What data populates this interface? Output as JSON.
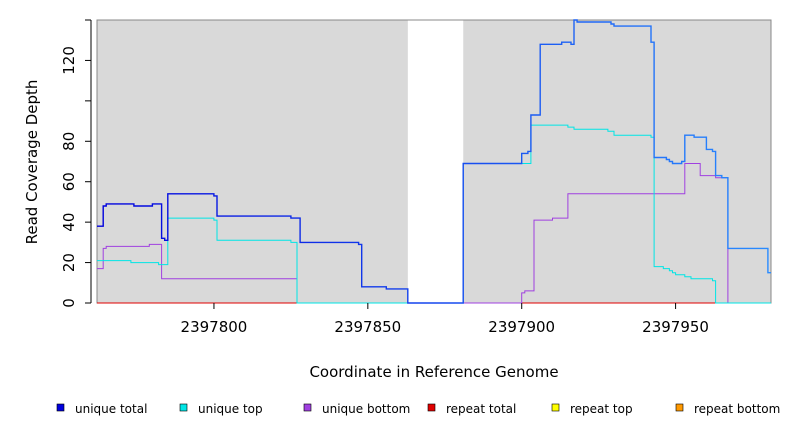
{
  "chart_data": {
    "type": "line",
    "title": "",
    "xlabel": "Coordinate in Reference Genome",
    "ylabel": "Read Coverage Depth",
    "xlim": [
      2397762,
      2397981
    ],
    "ylim": [
      0,
      140
    ],
    "x_ticks": [
      2397800,
      2397850,
      2397900,
      2397950
    ],
    "x_tick_labels": [
      "2397800",
      "2397850",
      "2397900",
      "2397950"
    ],
    "y_ticks": [
      0,
      20,
      40,
      60,
      80,
      100,
      120,
      140
    ],
    "y_tick_labels": [
      "0",
      "20",
      "40",
      "60",
      "80",
      "",
      "120",
      ""
    ],
    "shaded_regions": [
      [
        2397762,
        2397863
      ],
      [
        2397881,
        2397981
      ]
    ],
    "shade_color": "#d9d9d9",
    "legend_position": "bottom",
    "series": [
      {
        "name": "unique total",
        "color": "#0000dd",
        "gradient_to": "#2a8cff",
        "points": [
          [
            2397762,
            38
          ],
          [
            2397764,
            48
          ],
          [
            2397765,
            49
          ],
          [
            2397774,
            48
          ],
          [
            2397780,
            49
          ],
          [
            2397783,
            32
          ],
          [
            2397784,
            31
          ],
          [
            2397785,
            54
          ],
          [
            2397800,
            53
          ],
          [
            2397801,
            43
          ],
          [
            2397825,
            42
          ],
          [
            2397828,
            30
          ],
          [
            2397847,
            29
          ],
          [
            2397848,
            8
          ],
          [
            2397856,
            7
          ],
          [
            2397863,
            0
          ],
          [
            2397881,
            69
          ],
          [
            2397900,
            74
          ],
          [
            2397902,
            75
          ],
          [
            2397903,
            93
          ],
          [
            2397906,
            128
          ],
          [
            2397913,
            129
          ],
          [
            2397916,
            128
          ],
          [
            2397917,
            140
          ],
          [
            2397918,
            139
          ],
          [
            2397929,
            138
          ],
          [
            2397930,
            137
          ],
          [
            2397942,
            129
          ],
          [
            2397943,
            72
          ],
          [
            2397947,
            71
          ],
          [
            2397948,
            70
          ],
          [
            2397949,
            69
          ],
          [
            2397952,
            70
          ],
          [
            2397953,
            83
          ],
          [
            2397956,
            82
          ],
          [
            2397960,
            76
          ],
          [
            2397962,
            75
          ],
          [
            2397963,
            63
          ],
          [
            2397965,
            62
          ],
          [
            2397966,
            62
          ],
          [
            2397967,
            27
          ],
          [
            2397979,
            27
          ],
          [
            2397980,
            15
          ],
          [
            2397981,
            15
          ]
        ]
      },
      {
        "name": "unique top",
        "color": "#00e5e5",
        "points": [
          [
            2397762,
            21
          ],
          [
            2397773,
            20
          ],
          [
            2397782,
            19
          ],
          [
            2397785,
            42
          ],
          [
            2397800,
            41
          ],
          [
            2397801,
            31
          ],
          [
            2397825,
            30
          ],
          [
            2397827,
            0
          ],
          [
            2397881,
            69
          ],
          [
            2397900,
            69
          ],
          [
            2397903,
            88
          ],
          [
            2397915,
            87
          ],
          [
            2397917,
            86
          ],
          [
            2397928,
            85
          ],
          [
            2397930,
            83
          ],
          [
            2397942,
            82
          ],
          [
            2397943,
            18
          ],
          [
            2397946,
            17
          ],
          [
            2397948,
            16
          ],
          [
            2397949,
            15
          ],
          [
            2397950,
            14
          ],
          [
            2397953,
            13
          ],
          [
            2397955,
            12
          ],
          [
            2397962,
            11
          ],
          [
            2397963,
            0
          ],
          [
            2397981,
            0
          ]
        ]
      },
      {
        "name": "unique bottom",
        "color": "#a040e0",
        "points": [
          [
            2397762,
            17
          ],
          [
            2397764,
            27
          ],
          [
            2397765,
            28
          ],
          [
            2397779,
            29
          ],
          [
            2397783,
            12
          ],
          [
            2397827,
            0
          ],
          [
            2397900,
            5
          ],
          [
            2397901,
            6
          ],
          [
            2397904,
            41
          ],
          [
            2397910,
            42
          ],
          [
            2397914,
            42
          ],
          [
            2397915,
            54
          ],
          [
            2397953,
            69
          ],
          [
            2397958,
            63
          ],
          [
            2397963,
            62
          ],
          [
            2397967,
            0
          ],
          [
            2397981,
            0
          ]
        ]
      },
      {
        "name": "repeat total",
        "color": "#e00000",
        "points": [
          [
            2397762,
            0
          ],
          [
            2397981,
            0
          ]
        ]
      },
      {
        "name": "repeat top",
        "color": "#ffff00",
        "points": [
          [
            2397762,
            0
          ],
          [
            2397981,
            0
          ]
        ]
      },
      {
        "name": "repeat bottom",
        "color": "#ff9900",
        "points": [
          [
            2397762,
            0
          ],
          [
            2397981,
            0
          ]
        ]
      }
    ]
  }
}
